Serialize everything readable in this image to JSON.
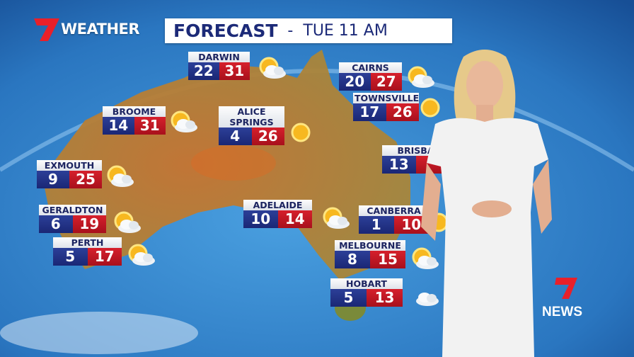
{
  "brand": {
    "logo": "7",
    "label": "WEATHER",
    "news_logo": "7NEWS"
  },
  "header": {
    "title": "FORECAST",
    "separator": "-",
    "time": "TUE  11 AM"
  },
  "colors": {
    "min_temp": "#1f2d80",
    "max_temp": "#c8161f",
    "title": "#1c2a78",
    "brand_red": "#e8202a"
  },
  "cities": [
    {
      "name": "DARWIN",
      "min": "22",
      "max": "31",
      "icon": "partly-cloudy-icon"
    },
    {
      "name": "CAIRNS",
      "min": "20",
      "max": "27",
      "icon": "partly-cloudy-icon"
    },
    {
      "name": "TOWNSVILLE",
      "min": "17",
      "max": "26",
      "icon": "sun-icon"
    },
    {
      "name": "BROOME",
      "min": "14",
      "max": "31",
      "icon": "partly-cloudy-icon"
    },
    {
      "name": "ALICE\nSPRINGS",
      "min": "4",
      "max": "26",
      "icon": "sun-icon"
    },
    {
      "name": "BRISBA",
      "min": "13",
      "max": "",
      "icon": ""
    },
    {
      "name": "EXMOUTH",
      "min": "9",
      "max": "25",
      "icon": "partly-cloudy-icon"
    },
    {
      "name": "GERALDTON",
      "min": "6",
      "max": "19",
      "icon": "partly-cloudy-icon"
    },
    {
      "name": "PERTH",
      "min": "5",
      "max": "17",
      "icon": "partly-cloudy-icon"
    },
    {
      "name": "ADELAIDE",
      "min": "10",
      "max": "14",
      "icon": "partly-cloudy-icon"
    },
    {
      "name": "CANBERRA",
      "min": "1",
      "max": "10",
      "icon": "sun-icon"
    },
    {
      "name": "MELBOURNE",
      "min": "8",
      "max": "15",
      "icon": "partly-cloudy-icon"
    },
    {
      "name": "HOBART",
      "min": "5",
      "max": "13",
      "icon": "cloud-icon"
    }
  ]
}
